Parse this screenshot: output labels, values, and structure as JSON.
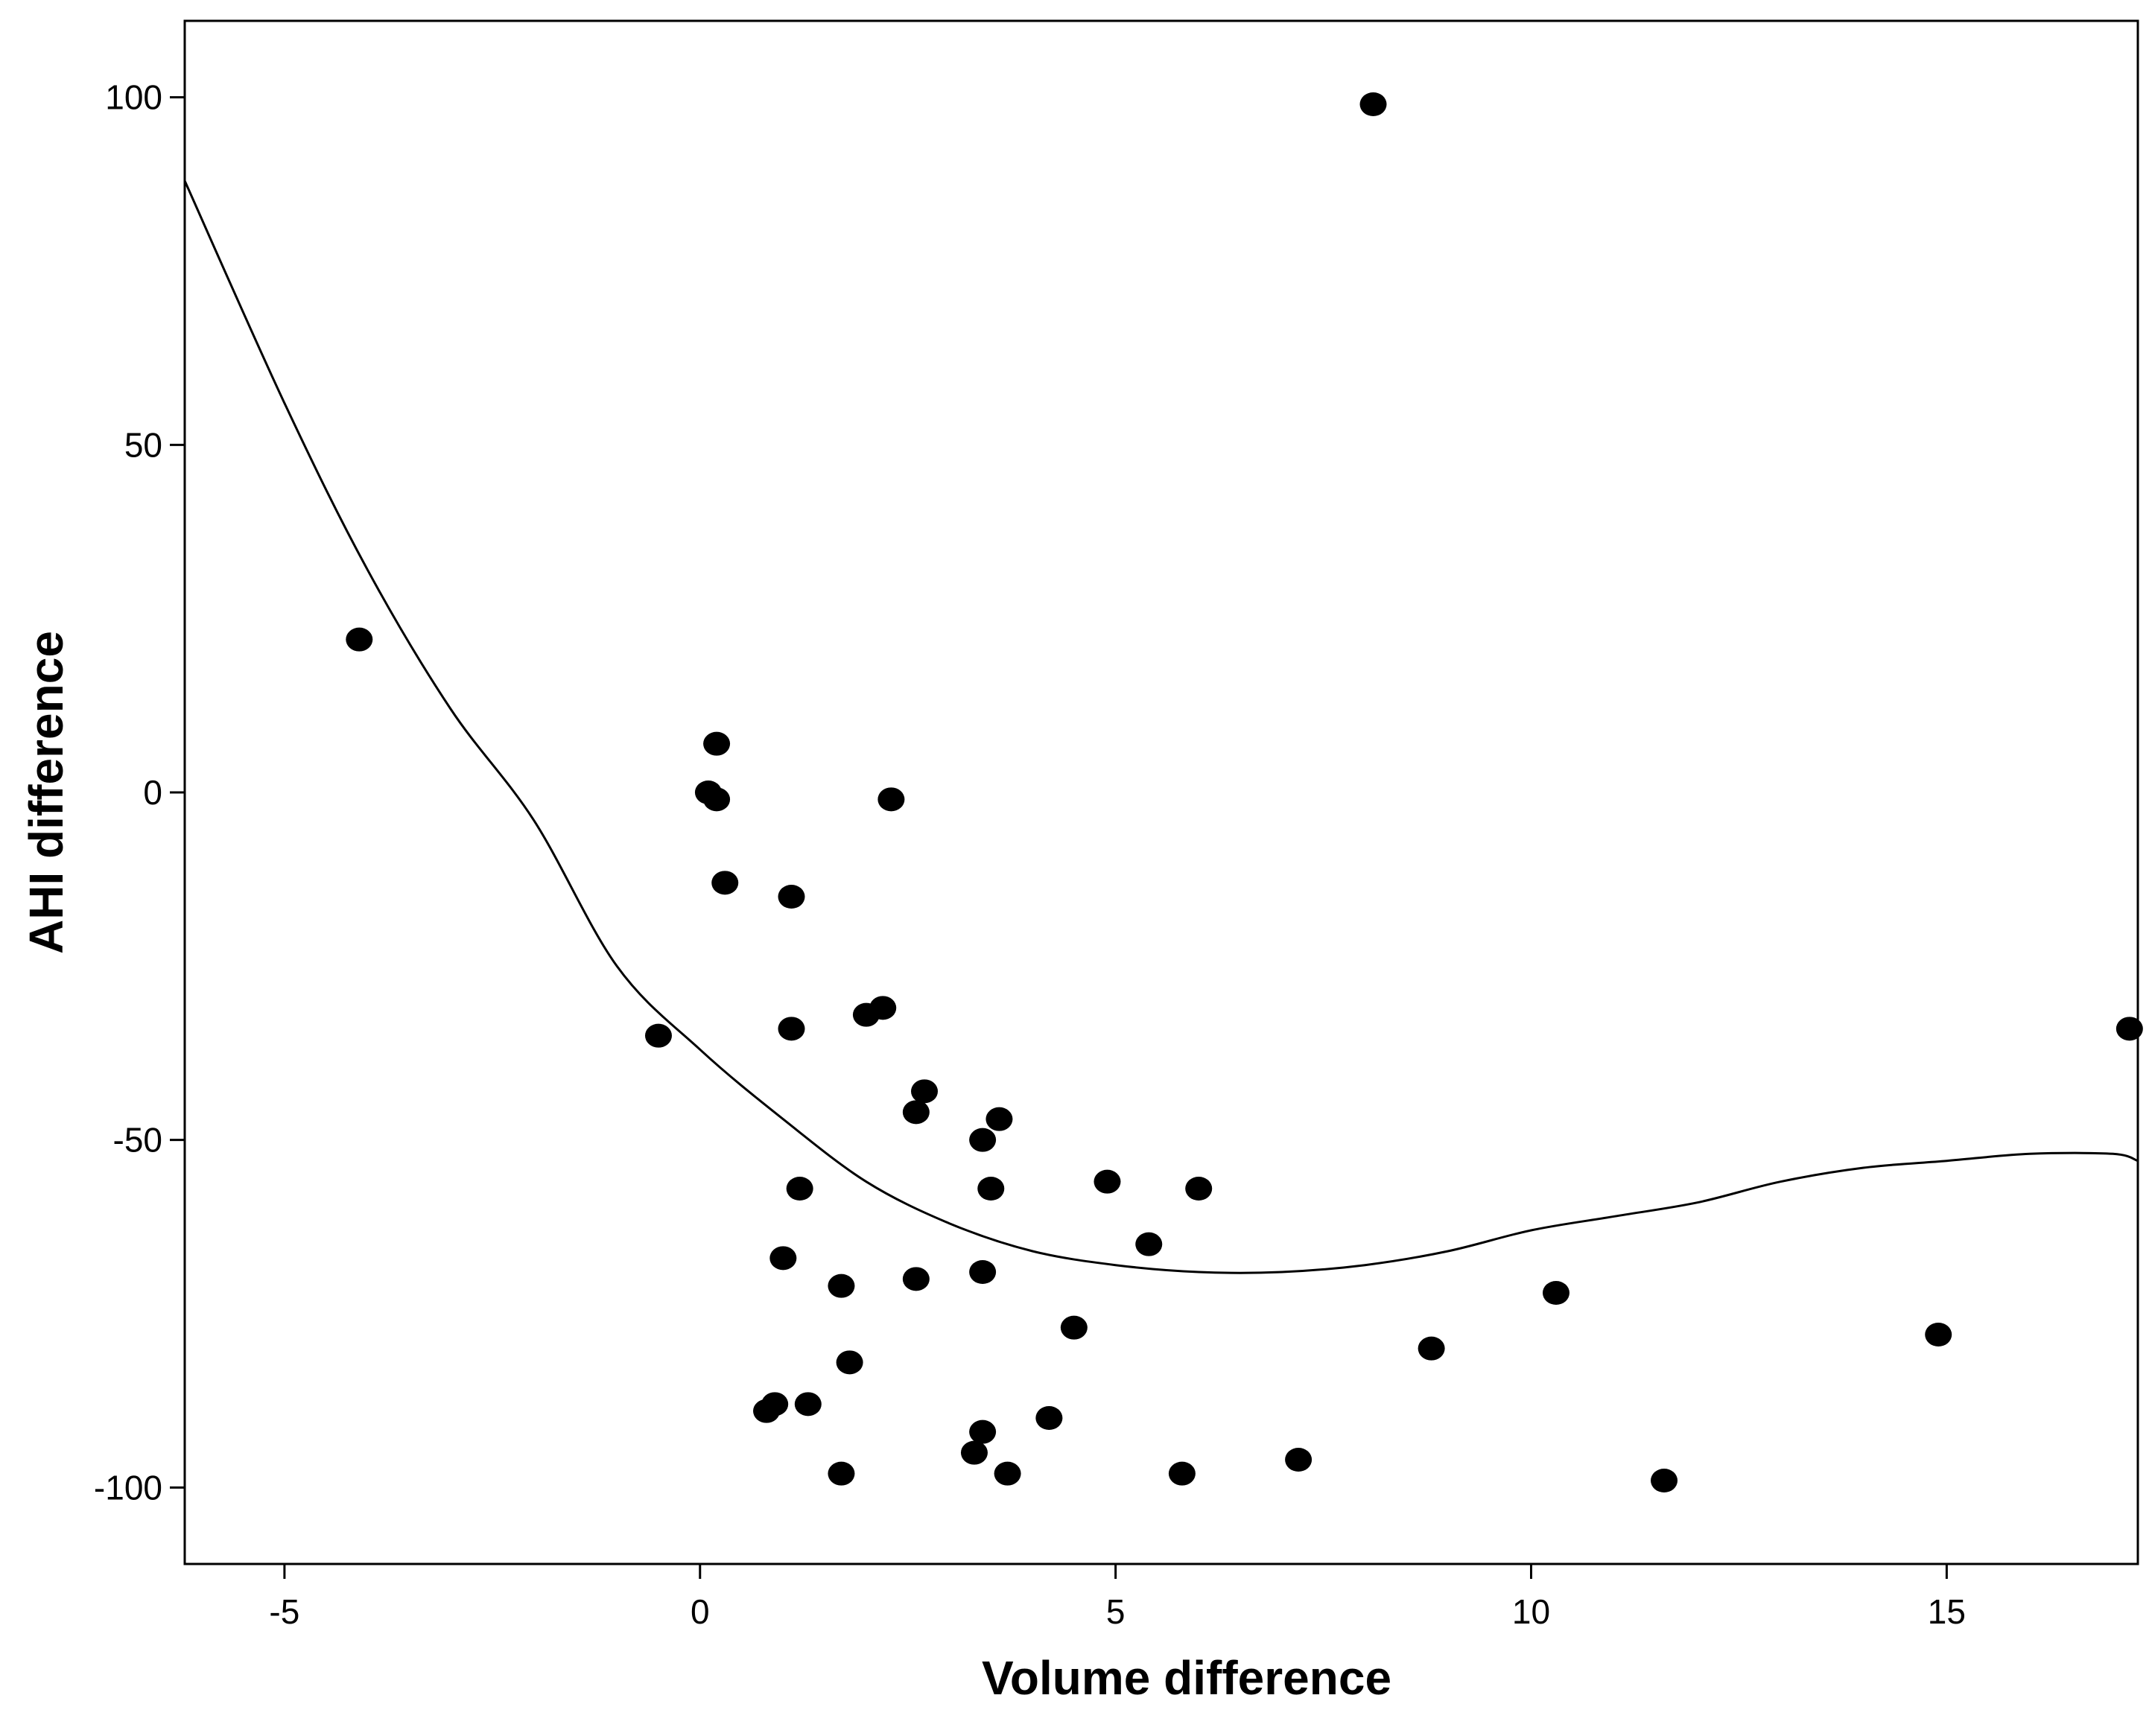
{
  "chart_data": {
    "type": "scatter",
    "title": "",
    "xlabel": "Volume difference",
    "ylabel": "AHI difference",
    "xlim": [
      -6.2,
      17.3
    ],
    "ylim": [
      -111,
      111
    ],
    "x_ticks": [
      -5,
      0,
      5,
      10,
      15
    ],
    "x_tick_labels": [
      "-5",
      "0",
      "5",
      "10",
      "15"
    ],
    "y_ticks": [
      100,
      50,
      0,
      -50,
      -100
    ],
    "y_tick_labels": [
      "100",
      "50",
      "0",
      "-50",
      "-100"
    ],
    "grid": false,
    "legend": "none",
    "marker_color": "#000000",
    "fit_line": {
      "type": "cubic",
      "x": [
        -6.2,
        -5,
        -4,
        -3,
        -2,
        -1,
        0,
        1,
        2,
        3,
        4,
        5,
        6,
        7,
        8,
        9,
        10,
        11,
        12,
        13,
        14,
        15,
        16,
        17,
        17.3
      ],
      "y": [
        88,
        56,
        32,
        12,
        -4,
        -25,
        -37,
        -47,
        -56,
        -62,
        -66,
        -68,
        -69,
        -69,
        -68,
        -66,
        -63,
        -61,
        -59,
        -56,
        -54,
        -53,
        -52,
        -52,
        -53
      ]
    },
    "points": [
      {
        "x": -4.1,
        "y": 22
      },
      {
        "x": -0.5,
        "y": -35
      },
      {
        "x": 0.1,
        "y": 0
      },
      {
        "x": 0.2,
        "y": -1
      },
      {
        "x": 0.2,
        "y": 7
      },
      {
        "x": 0.3,
        "y": -13
      },
      {
        "x": 0.8,
        "y": -89
      },
      {
        "x": 0.9,
        "y": -88
      },
      {
        "x": 1.0,
        "y": -67
      },
      {
        "x": 1.1,
        "y": -15
      },
      {
        "x": 1.1,
        "y": -34
      },
      {
        "x": 1.2,
        "y": -57
      },
      {
        "x": 1.3,
        "y": -88
      },
      {
        "x": 1.7,
        "y": -71
      },
      {
        "x": 1.7,
        "y": -98
      },
      {
        "x": 1.8,
        "y": -82
      },
      {
        "x": 2.0,
        "y": -32
      },
      {
        "x": 2.2,
        "y": -31
      },
      {
        "x": 2.3,
        "y": -1
      },
      {
        "x": 2.6,
        "y": -46
      },
      {
        "x": 2.6,
        "y": -70
      },
      {
        "x": 2.7,
        "y": -43
      },
      {
        "x": 3.3,
        "y": -95
      },
      {
        "x": 3.4,
        "y": -50
      },
      {
        "x": 3.4,
        "y": -69
      },
      {
        "x": 3.4,
        "y": -92
      },
      {
        "x": 3.5,
        "y": -57
      },
      {
        "x": 3.6,
        "y": -47
      },
      {
        "x": 3.7,
        "y": -98
      },
      {
        "x": 4.2,
        "y": -90
      },
      {
        "x": 4.5,
        "y": -77
      },
      {
        "x": 4.9,
        "y": -56
      },
      {
        "x": 5.4,
        "y": -65
      },
      {
        "x": 5.8,
        "y": -98
      },
      {
        "x": 6.0,
        "y": -57
      },
      {
        "x": 7.2,
        "y": -96
      },
      {
        "x": 8.1,
        "y": 99
      },
      {
        "x": 8.8,
        "y": -80
      },
      {
        "x": 10.3,
        "y": -72
      },
      {
        "x": 11.6,
        "y": -99
      },
      {
        "x": 14.9,
        "y": -78
      },
      {
        "x": 17.2,
        "y": -34
      }
    ]
  }
}
